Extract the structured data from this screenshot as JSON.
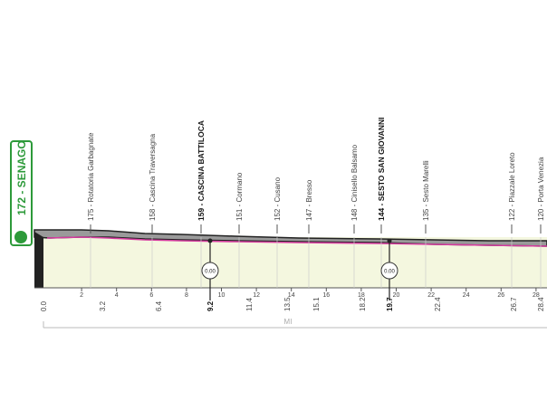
{
  "start": {
    "label": "172 - SENAGO"
  },
  "waypoints": [
    "175 - Rotatoria Garbagnate",
    "158 - Cascina Traversagna",
    "159 - CASCINA BATTILOCA",
    "151 - Cormano",
    "152 - Cusano",
    "147 - Bresso",
    "148 - Cinisello Balsamo",
    "144 - SESTO SAN GIOVANNI",
    "135 - Sesto Marelli",
    "122 - Piazzale Loreto",
    "120 - Porta Venezia"
  ],
  "km_ticks": [
    2,
    4,
    6,
    8,
    10,
    12,
    14,
    16,
    18,
    20,
    22,
    24,
    26,
    28
  ],
  "distances": [
    "0.0",
    "3.2",
    "6.4",
    "9.2",
    "11.4",
    "13.5",
    "15.1",
    "18.2",
    "19.7",
    "22.4",
    "26.7",
    "28.4"
  ],
  "sprints": [
    "0.00",
    "0.00"
  ],
  "axis_label": "MI"
}
